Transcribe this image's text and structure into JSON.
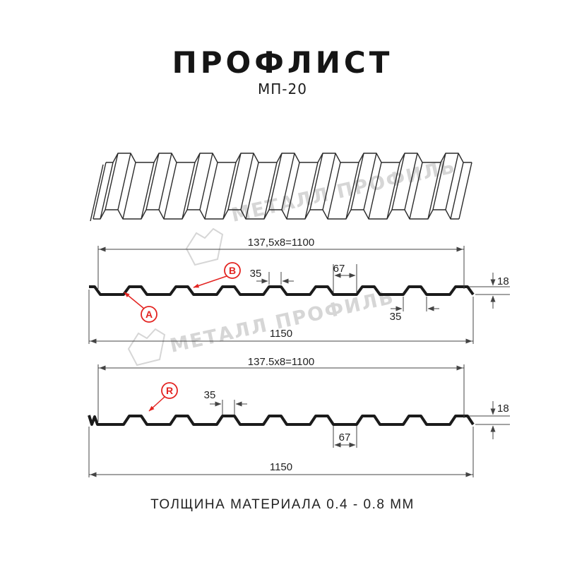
{
  "header": {
    "title": "ПРОФЛИСТ",
    "subtitle": "МП-20"
  },
  "watermark": {
    "brand": "МЕТАЛЛ ПРОФИЛЬ",
    "color": "#d6d6d6"
  },
  "colors": {
    "profile_line": "#1b1b1b",
    "dim_line": "#444444",
    "dim_text": "#222222",
    "accent_red": "#e32421",
    "watermark": "#d6d6d6"
  },
  "diagram_top": {
    "face_labels": {
      "a": "A",
      "b": "B"
    },
    "dims": {
      "working_width": "137,5x8=1100",
      "rib_top_width": "35",
      "valley_width": "67",
      "rib_base_width": "35",
      "profile_height": "18",
      "total_width": "1150"
    }
  },
  "diagram_bottom": {
    "face_labels": {
      "r": "R"
    },
    "dims": {
      "working_width": "137.5x8=1100",
      "rib_top_width": "35",
      "valley_width": "67",
      "profile_height": "18",
      "total_width": "1150"
    }
  },
  "footer": {
    "material_thickness": "ТОЛЩИНА МАТЕРИАЛА 0.4 - 0.8 ММ"
  }
}
